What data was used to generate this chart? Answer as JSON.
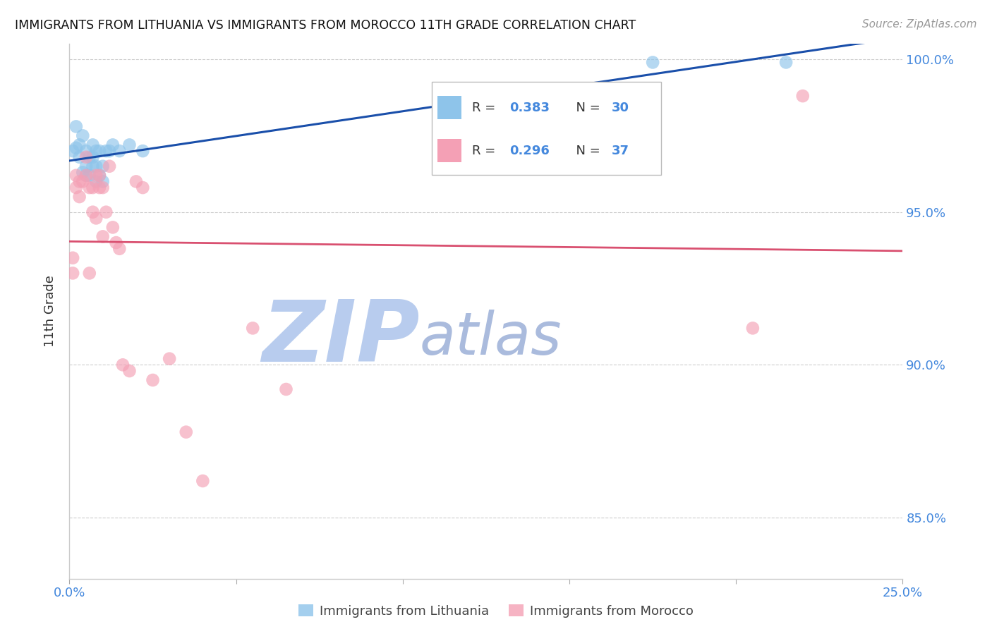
{
  "title": "IMMIGRANTS FROM LITHUANIA VS IMMIGRANTS FROM MOROCCO 11TH GRADE CORRELATION CHART",
  "source": "Source: ZipAtlas.com",
  "ylabel": "11th Grade",
  "xlim": [
    0.0,
    0.25
  ],
  "ylim": [
    0.83,
    1.005
  ],
  "xtick_vals": [
    0.0,
    0.05,
    0.1,
    0.15,
    0.2,
    0.25
  ],
  "xtick_labels": [
    "0.0%",
    "",
    "",
    "",
    "",
    "25.0%"
  ],
  "ytick_vals": [
    0.85,
    0.9,
    0.95,
    1.0
  ],
  "ytick_labels": [
    "85.0%",
    "90.0%",
    "95.0%",
    "100.0%"
  ],
  "legend_r1": "0.383",
  "legend_n1": "30",
  "legend_r2": "0.296",
  "legend_n2": "37",
  "color_lithuania": "#8EC4EA",
  "color_morocco": "#F4A0B5",
  "color_trend_lithuania": "#1A4FAA",
  "color_trend_morocco": "#D95070",
  "color_axis_labels": "#4488DD",
  "watermark_zip": "ZIP",
  "watermark_atlas": "atlas",
  "watermark_color_zip": "#B8CCEE",
  "watermark_color_atlas": "#AABBDD",
  "scatter_lithuania_x": [
    0.001,
    0.002,
    0.002,
    0.003,
    0.003,
    0.004,
    0.004,
    0.005,
    0.005,
    0.005,
    0.006,
    0.006,
    0.007,
    0.007,
    0.007,
    0.008,
    0.008,
    0.008,
    0.009,
    0.009,
    0.01,
    0.01,
    0.011,
    0.012,
    0.013,
    0.015,
    0.018,
    0.022,
    0.175,
    0.215
  ],
  "scatter_lithuania_y": [
    0.97,
    0.971,
    0.978,
    0.968,
    0.972,
    0.963,
    0.975,
    0.962,
    0.97,
    0.965,
    0.962,
    0.968,
    0.965,
    0.968,
    0.972,
    0.96,
    0.97,
    0.965,
    0.962,
    0.97,
    0.96,
    0.965,
    0.97,
    0.97,
    0.972,
    0.97,
    0.972,
    0.97,
    0.999,
    0.999
  ],
  "scatter_morocco_x": [
    0.001,
    0.001,
    0.002,
    0.002,
    0.003,
    0.003,
    0.004,
    0.005,
    0.005,
    0.006,
    0.006,
    0.007,
    0.007,
    0.008,
    0.008,
    0.009,
    0.009,
    0.01,
    0.01,
    0.011,
    0.012,
    0.013,
    0.014,
    0.015,
    0.016,
    0.018,
    0.02,
    0.022,
    0.025,
    0.03,
    0.035,
    0.04,
    0.055,
    0.065,
    0.16,
    0.205,
    0.22
  ],
  "scatter_morocco_y": [
    0.93,
    0.935,
    0.958,
    0.962,
    0.955,
    0.96,
    0.96,
    0.962,
    0.968,
    0.93,
    0.958,
    0.95,
    0.958,
    0.948,
    0.962,
    0.958,
    0.962,
    0.942,
    0.958,
    0.95,
    0.965,
    0.945,
    0.94,
    0.938,
    0.9,
    0.898,
    0.96,
    0.958,
    0.895,
    0.902,
    0.878,
    0.862,
    0.912,
    0.892,
    0.97,
    0.912,
    0.988
  ],
  "background_color": "#FFFFFF",
  "grid_color": "#CCCCCC"
}
